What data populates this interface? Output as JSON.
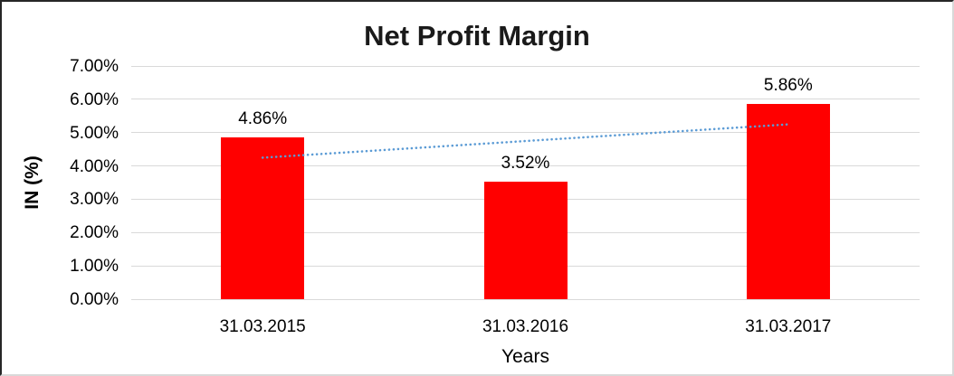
{
  "chart_data": {
    "type": "bar",
    "title": "Net Profit Margin",
    "xlabel": "Years",
    "ylabel": "IN (%)",
    "categories": [
      "31.03.2015",
      "31.03.2016",
      "31.03.2017"
    ],
    "values": [
      4.86,
      3.52,
      5.86
    ],
    "data_labels": [
      "4.86%",
      "3.52%",
      "5.86%"
    ],
    "ylim": [
      0,
      7
    ],
    "ytick_step": 1,
    "ytick_labels": [
      "0.00%",
      "1.00%",
      "2.00%",
      "3.00%",
      "4.00%",
      "5.00%",
      "6.00%",
      "7.00%"
    ],
    "grid": true,
    "legend": "none",
    "bar_color": "#ff0000",
    "gridline_color": "#d9d9d9",
    "trendline": {
      "type": "linear",
      "style": "dotted",
      "color": "#5b9bd5"
    }
  }
}
